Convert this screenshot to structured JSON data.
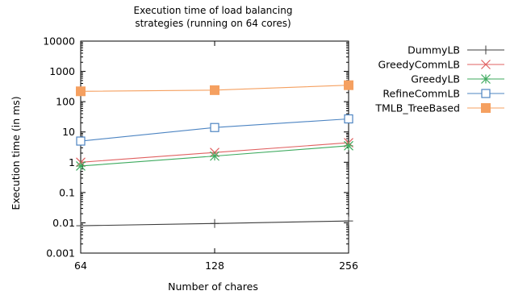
{
  "chart_data": {
    "type": "line",
    "title_lines": [
      "Execution time of load balancing",
      "strategies (running on 64 cores)"
    ],
    "xlabel": "Number of chares",
    "ylabel": "Execution time (in ms)",
    "x_scale": "log2",
    "y_scale": "log10",
    "x": [
      64,
      128,
      256
    ],
    "x_tick_labels": [
      "64",
      "128",
      "256"
    ],
    "ylim": [
      0.001,
      10000
    ],
    "y_ticks": [
      0.001,
      0.01,
      0.1,
      1,
      10,
      100,
      1000,
      10000
    ],
    "y_tick_labels": [
      "0.001",
      "0.01",
      "0.1",
      "1",
      "10",
      "100",
      "1000",
      "10000"
    ],
    "grid": false,
    "legend_position": "right",
    "series": [
      {
        "name": "DummyLB",
        "color": "#3c3c3c",
        "marker": "plus",
        "values": [
          0.008,
          0.0095,
          0.0115
        ]
      },
      {
        "name": "GreedyCommLB",
        "color": "#e06060",
        "marker": "cross",
        "values": [
          1.0,
          2.1,
          4.4
        ]
      },
      {
        "name": "GreedyLB",
        "color": "#3daa5e",
        "marker": "star",
        "values": [
          0.75,
          1.6,
          3.5
        ]
      },
      {
        "name": "RefineCommLB",
        "color": "#4c84c2",
        "marker": "square-open",
        "values": [
          5.0,
          14.0,
          27.0
        ]
      },
      {
        "name": "TMLB_TreeBased",
        "color": "#f5a060",
        "marker": "square-filled",
        "values": [
          220,
          240,
          350
        ]
      }
    ]
  }
}
